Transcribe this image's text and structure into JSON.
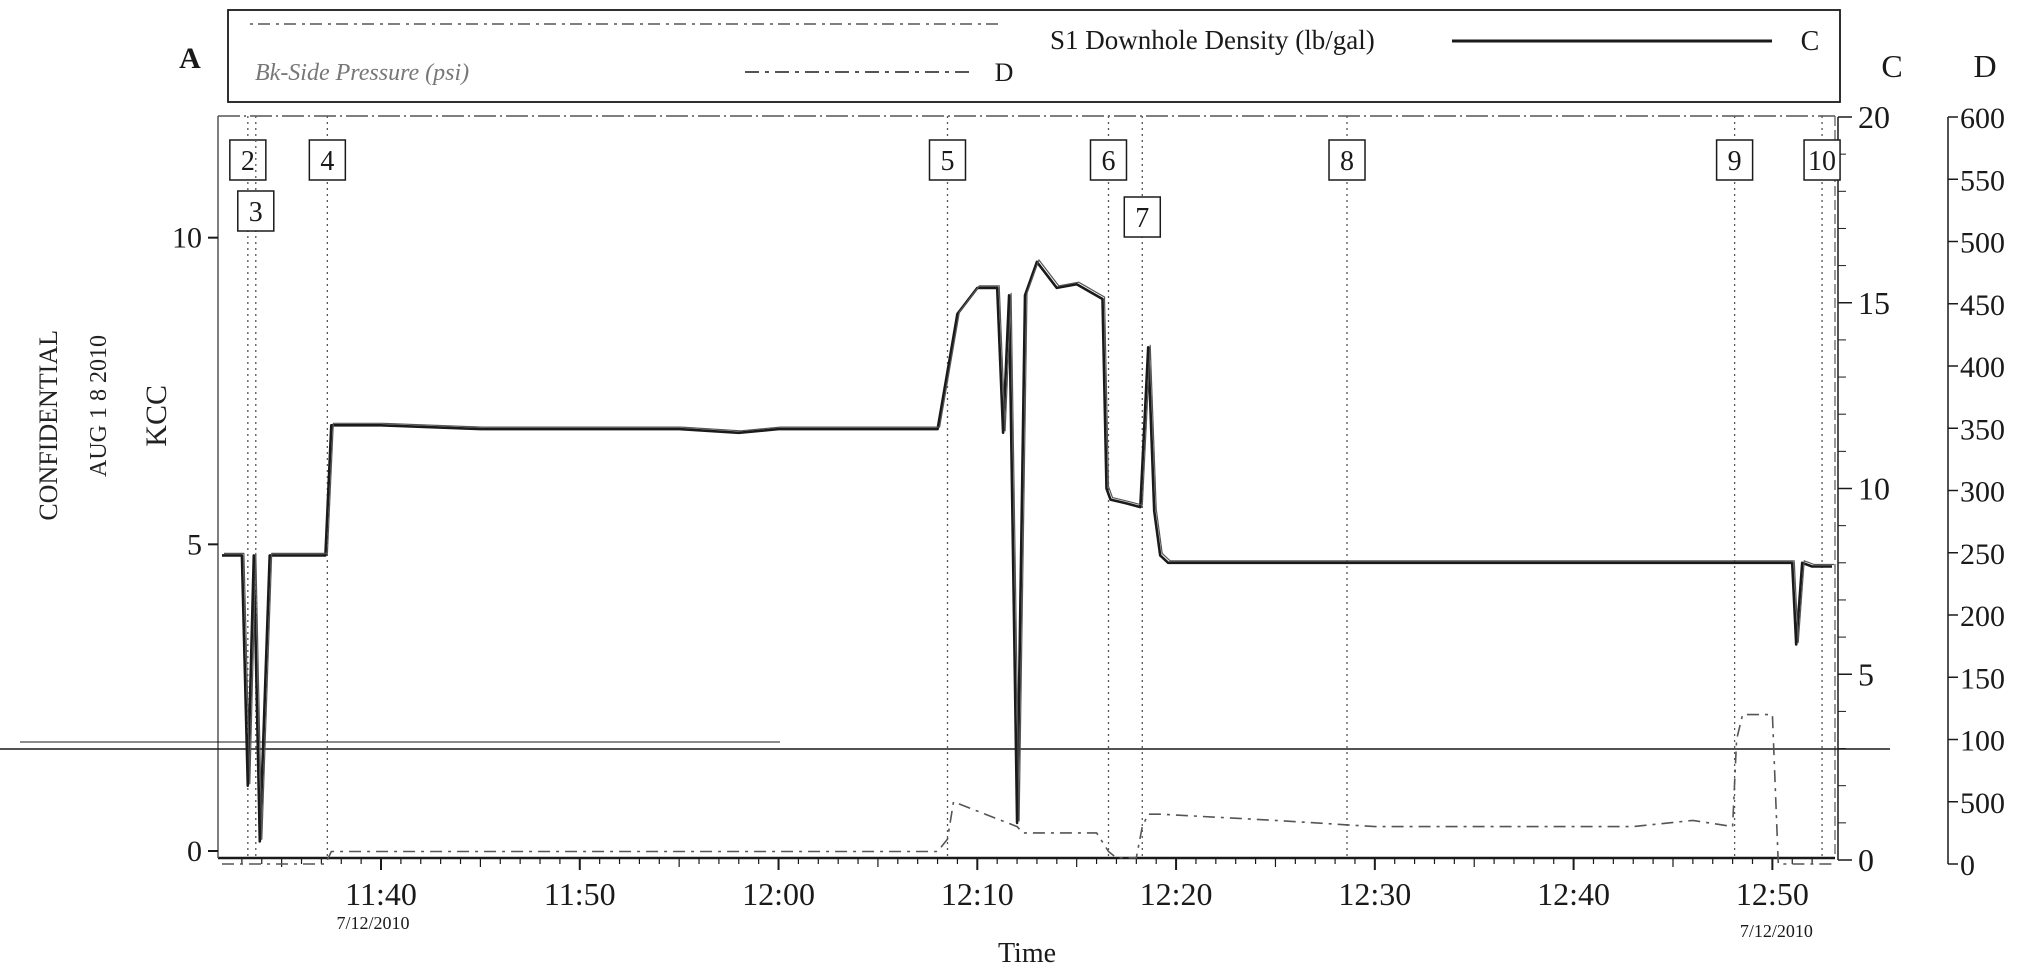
{
  "chart_data": {
    "type": "line",
    "title": "",
    "xlabel": "Time",
    "date_tick_label_left": "7/12/2010",
    "date_tick_label_right": "7/12/2010",
    "x_ticks": [
      "11:40",
      "11:50",
      "12:00",
      "12:10",
      "12:20",
      "12:30",
      "12:40",
      "12:50"
    ],
    "x_range": [
      "11:32",
      "12:53"
    ],
    "axes": {
      "A": {
        "label": "A",
        "ticks": [
          "0",
          "5",
          "10"
        ],
        "range": [
          0,
          12
        ]
      },
      "C": {
        "label": "C",
        "ticks": [
          "0",
          "5",
          "10",
          "15",
          "20"
        ],
        "range": [
          0,
          20
        ]
      },
      "D": {
        "label": "D",
        "ticks": [
          "0",
          "500",
          "100",
          "150",
          "200",
          "250",
          "300",
          "350",
          "400",
          "450",
          "500",
          "550",
          "600"
        ],
        "range": [
          0,
          600
        ]
      }
    },
    "legend": {
      "entries": [
        {
          "text": "S1 Downhole Density (lb/gal)",
          "axis": "C"
        },
        {
          "text": "Bk-Side Pressure (psi)",
          "axis": "D"
        }
      ]
    },
    "event_markers": [
      "2",
      "3",
      "4",
      "5",
      "6",
      "7",
      "8",
      "9",
      "10"
    ],
    "event_times": [
      "11:33.3",
      "11:33.7",
      "11:37.3",
      "12:08.5",
      "12:16.6",
      "12:18.3",
      "12:28.6",
      "12:48.1",
      "12:52.5"
    ],
    "series": [
      {
        "name": "S1 Downhole Density (lb/gal)",
        "axis": "C",
        "x": [
          "11:32",
          "11:33",
          "11:33.3",
          "11:33.6",
          "11:33.9",
          "11:34.4",
          "11:35",
          "11:36",
          "11:37.2",
          "11:37.5",
          "11:40",
          "11:45",
          "11:50",
          "11:55",
          "11:58",
          "12:00",
          "12:05",
          "12:08",
          "12:09",
          "12:10",
          "12:11",
          "12:11.3",
          "12:11.6",
          "12:12",
          "12:12.4",
          "12:13",
          "12:14",
          "12:15",
          "12:16.3",
          "12:16.5",
          "12:16.7",
          "12:17.5",
          "12:18.2",
          "12:18.6",
          "12:18.9",
          "12:19.2",
          "12:19.6",
          "12:20",
          "12:25",
          "12:30",
          "12:35",
          "12:40",
          "12:45",
          "12:50",
          "12:51",
          "12:51.2",
          "12:51.5",
          "12:52",
          "12:53"
        ],
        "y": [
          8.2,
          8.2,
          2.0,
          8.2,
          0.5,
          8.2,
          8.2,
          8.2,
          8.2,
          11.7,
          11.7,
          11.6,
          11.6,
          11.6,
          11.5,
          11.6,
          11.6,
          11.6,
          14.7,
          15.4,
          15.4,
          11.5,
          15.2,
          1.0,
          15.2,
          16.1,
          15.4,
          15.5,
          15.1,
          10.0,
          9.7,
          9.6,
          9.5,
          13.8,
          9.4,
          8.2,
          8.0,
          8.0,
          8.0,
          8.0,
          8.0,
          8.0,
          8.0,
          8.0,
          8.0,
          5.8,
          8.0,
          7.9,
          7.9
        ]
      },
      {
        "name": "Bk-Side Pressure (psi)",
        "axis": "D",
        "x": [
          "11:32",
          "11:33",
          "11:34",
          "11:35",
          "11:37.2",
          "11:37.5",
          "12:08",
          "12:08.5",
          "12:08.8",
          "12:12",
          "12:12.3",
          "12:16",
          "12:16.6",
          "12:17",
          "12:18",
          "12:18.3",
          "12:18.6",
          "12:19.2",
          "12:25",
          "12:30",
          "12:35",
          "12:40",
          "12:43",
          "12:46",
          "12:48",
          "12:48.2",
          "12:48.5",
          "12:50",
          "12:50.3",
          "12:52",
          "12:53"
        ],
        "y": [
          0,
          0,
          0,
          0,
          0,
          10,
          10,
          20,
          50,
          30,
          25,
          25,
          10,
          5,
          5,
          30,
          40,
          40,
          35,
          30,
          30,
          30,
          30,
          35,
          30,
          100,
          120,
          120,
          0,
          0,
          0
        ]
      }
    ]
  },
  "stamps": {
    "kcc": "KCC",
    "date": "AUG 1 8 2010",
    "confidential": "CONFIDENTIAL"
  },
  "colors": {
    "line": "#1a1a1a",
    "faint": "#555555",
    "background": "#ffffff"
  }
}
